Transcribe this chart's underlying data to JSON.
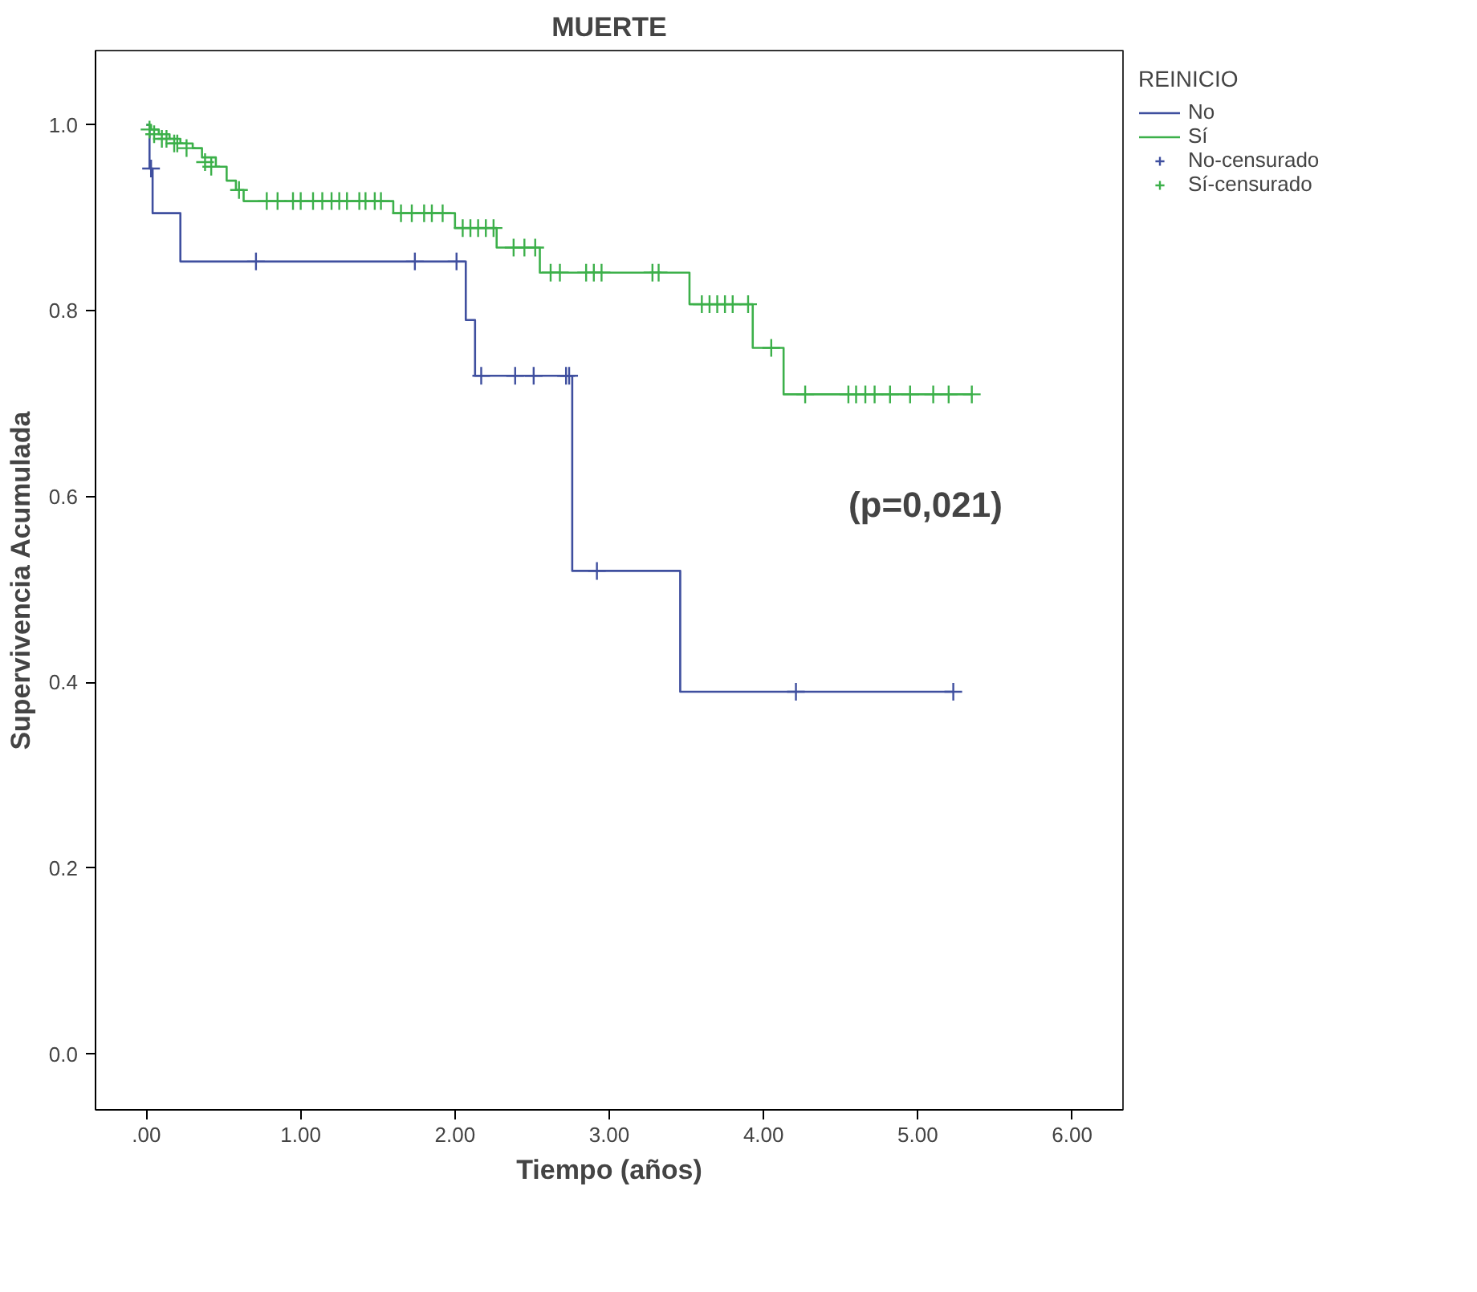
{
  "chart_data": {
    "type": "step",
    "title": "MUERTE",
    "xlabel": "Tiempo (años)",
    "ylabel": "Supervivencia Acumulada",
    "legend_title": "REINICIO",
    "annotations": [
      "(p=0,021)"
    ],
    "series": [
      {
        "name": "No",
        "color": "#3f4f9f",
        "marker": "none",
        "x": [
          0,
          0.02,
          0.04,
          0.22,
          2.07,
          2.13,
          2.76,
          3.46,
          5.23
        ],
        "values": [
          1.0,
          0.953,
          0.905,
          0.853,
          0.79,
          0.73,
          0.52,
          0.39,
          0.39
        ]
      },
      {
        "name": "Sí",
        "color": "#3cb04a",
        "marker": "none",
        "x": [
          0,
          0.03,
          0.08,
          0.15,
          0.22,
          0.3,
          0.36,
          0.45,
          0.52,
          0.58,
          0.63,
          1.6,
          2.0,
          2.27,
          2.55,
          3.52,
          3.93,
          4.13,
          5.35
        ],
        "values": [
          1.0,
          0.995,
          0.99,
          0.985,
          0.98,
          0.975,
          0.965,
          0.955,
          0.94,
          0.93,
          0.918,
          0.905,
          0.889,
          0.868,
          0.841,
          0.807,
          0.76,
          0.71,
          0.71
        ]
      },
      {
        "name": "No-censurado",
        "type": "scatter",
        "color": "#3f4f9f",
        "marker": "cross",
        "x": [
          0.03,
          0.71,
          1.74,
          2.01,
          2.17,
          2.39,
          2.51,
          2.72,
          2.74,
          2.92,
          4.21,
          5.23
        ],
        "values": [
          0.953,
          0.853,
          0.853,
          0.853,
          0.73,
          0.73,
          0.73,
          0.73,
          0.73,
          0.52,
          0.39,
          0.39
        ]
      },
      {
        "name": "Sí-censurado",
        "type": "scatter",
        "color": "#3cb04a",
        "marker": "cross",
        "x": [
          0.02,
          0.05,
          0.1,
          0.13,
          0.18,
          0.2,
          0.26,
          0.38,
          0.42,
          0.6,
          0.78,
          0.85,
          0.95,
          1.0,
          1.08,
          1.14,
          1.2,
          1.25,
          1.3,
          1.38,
          1.42,
          1.48,
          1.52,
          1.65,
          1.72,
          1.8,
          1.85,
          1.92,
          2.05,
          2.1,
          2.15,
          2.2,
          2.25,
          2.38,
          2.45,
          2.52,
          2.62,
          2.68,
          2.85,
          2.9,
          2.95,
          3.28,
          3.32,
          3.6,
          3.65,
          3.7,
          3.75,
          3.8,
          3.9,
          4.05,
          4.27,
          4.55,
          4.6,
          4.66,
          4.72,
          4.82,
          4.95,
          5.1,
          5.2,
          5.35
        ],
        "values": [
          0.995,
          0.99,
          0.985,
          0.985,
          0.98,
          0.98,
          0.975,
          0.96,
          0.955,
          0.93,
          0.918,
          0.918,
          0.918,
          0.918,
          0.918,
          0.918,
          0.918,
          0.918,
          0.918,
          0.918,
          0.918,
          0.918,
          0.918,
          0.905,
          0.905,
          0.905,
          0.905,
          0.905,
          0.889,
          0.889,
          0.889,
          0.889,
          0.889,
          0.868,
          0.868,
          0.868,
          0.841,
          0.841,
          0.841,
          0.841,
          0.841,
          0.841,
          0.841,
          0.807,
          0.807,
          0.807,
          0.807,
          0.807,
          0.807,
          0.76,
          0.71,
          0.71,
          0.71,
          0.71,
          0.71,
          0.71,
          0.71,
          0.71,
          0.71,
          0.71
        ]
      }
    ],
    "xlim": [
      -0.33,
      6.33
    ],
    "ylim": [
      -0.06,
      1.08
    ],
    "xticks": [
      {
        "value": 0,
        "label": ".00"
      },
      {
        "value": 1,
        "label": "1.00"
      },
      {
        "value": 2,
        "label": "2.00"
      },
      {
        "value": 3,
        "label": "3.00"
      },
      {
        "value": 4,
        "label": "4.00"
      },
      {
        "value": 5,
        "label": "5.00"
      },
      {
        "value": 6,
        "label": "6.00"
      }
    ],
    "yticks": [
      {
        "value": 0,
        "label": "0.0"
      },
      {
        "value": 0.2,
        "label": "0.2"
      },
      {
        "value": 0.4,
        "label": "0.4"
      },
      {
        "value": 0.6,
        "label": "0.6"
      },
      {
        "value": 0.8,
        "label": "0.8"
      },
      {
        "value": 1.0,
        "label": "1.0"
      }
    ],
    "grid": false,
    "legend": "right"
  }
}
